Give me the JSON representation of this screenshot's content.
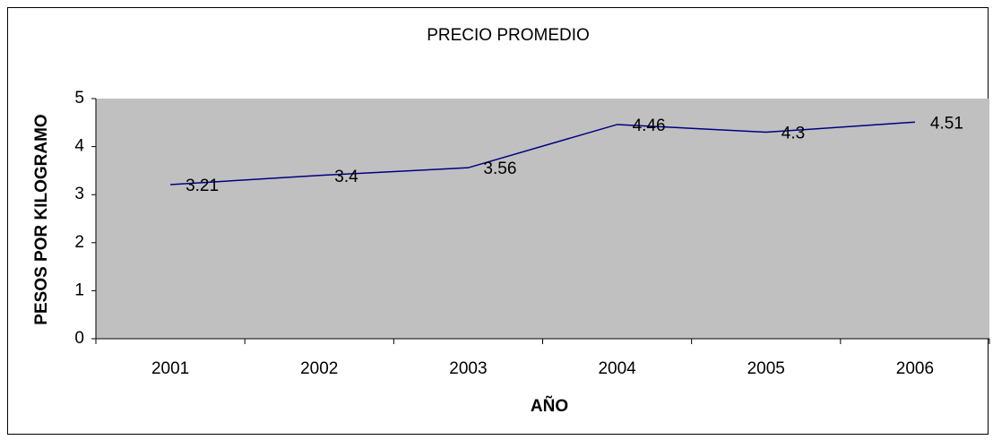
{
  "chart_data": {
    "type": "line",
    "title": "PRECIO PROMEDIO",
    "x_label": "AÑO",
    "y_label": "PESOS POR KILOGRAMO",
    "categories": [
      "2001",
      "2002",
      "2003",
      "2004",
      "2005",
      "2006"
    ],
    "values": [
      3.21,
      3.4,
      3.56,
      4.46,
      4.3,
      4.51
    ],
    "color": "#000080",
    "plot_background": "#c0c0c0",
    "ylim": [
      0,
      5
    ],
    "yticks": [
      0,
      1,
      2,
      3,
      4,
      5
    ],
    "grid": false
  }
}
